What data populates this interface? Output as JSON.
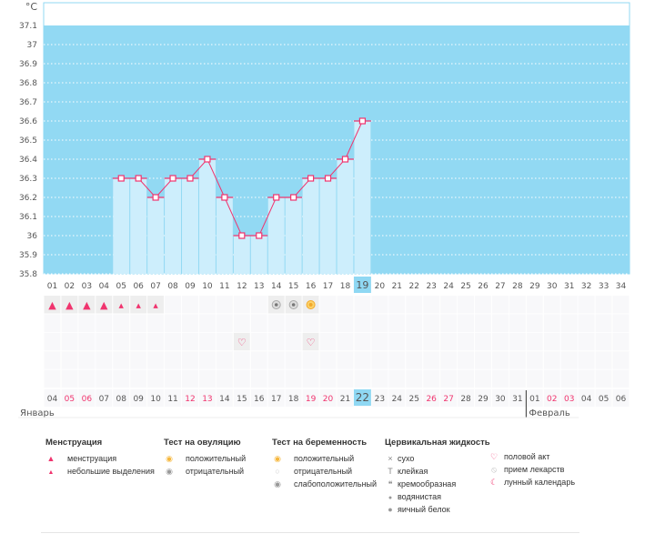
{
  "chart_data": {
    "type": "bar",
    "ylabel": "°C",
    "ylim": [
      35.8,
      37.1
    ],
    "yticks": [
      "37.1",
      "37",
      "36.9",
      "36.8",
      "36.7",
      "36.6",
      "36.5",
      "36.4",
      "36.3",
      "36.2",
      "36.1",
      "36",
      "35.9",
      "35.8"
    ],
    "cycle_days": [
      "01",
      "02",
      "03",
      "04",
      "05",
      "06",
      "07",
      "08",
      "09",
      "10",
      "11",
      "12",
      "13",
      "14",
      "15",
      "16",
      "17",
      "18",
      "19",
      "20",
      "21",
      "22",
      "23",
      "24",
      "25",
      "26",
      "27",
      "28",
      "29",
      "30",
      "31",
      "32",
      "33",
      "34"
    ],
    "temperatures": [
      null,
      null,
      null,
      null,
      36.3,
      36.3,
      36.2,
      36.3,
      36.3,
      36.4,
      36.2,
      36.0,
      36.0,
      36.2,
      36.2,
      36.3,
      36.3,
      36.4,
      36.6
    ],
    "current_day": "19",
    "dates": [
      "04",
      "05",
      "06",
      "07",
      "08",
      "09",
      "10",
      "11",
      "12",
      "13",
      "14",
      "15",
      "16",
      "17",
      "18",
      "19",
      "20",
      "21",
      "22",
      "23",
      "24",
      "25",
      "26",
      "27",
      "28",
      "29",
      "30",
      "31",
      "01",
      "02",
      "03",
      "04",
      "05",
      "06"
    ],
    "weekend_dates_idx": [
      1,
      2,
      8,
      9,
      15,
      16,
      22,
      23,
      29,
      30
    ],
    "today_date": "22",
    "months": [
      "Январь",
      "Февраль"
    ],
    "colors": {
      "bg": "#92d9f3",
      "bar": "#cdeefc",
      "line": "#f0346e",
      "today": "#8fd8f3",
      "weekend": "#f0346e"
    }
  },
  "markers": {
    "row1": [
      "menstruation",
      "menstruation",
      "menstruation",
      "menstruation",
      "spotting",
      "spotting",
      "spotting",
      null,
      null,
      null,
      null,
      null,
      null,
      "ovulation-negative",
      "ovulation-negative",
      "ovulation-positive"
    ],
    "row3": [
      null,
      null,
      null,
      null,
      null,
      null,
      null,
      null,
      null,
      null,
      null,
      "heart",
      null,
      null,
      null,
      "heart"
    ]
  },
  "legend": {
    "menstruation": {
      "title": "Менструация",
      "items": [
        "менструация",
        "небольшие выделения"
      ]
    },
    "ovulation": {
      "title": "Тест на овуляцию",
      "items": [
        "положительный",
        "отрицательный"
      ]
    },
    "pregnancy": {
      "title": "Тест на беременность",
      "items": [
        "положительный",
        "отрицательный",
        "слабоположительный"
      ]
    },
    "cervical": {
      "title": "Цервикальная жидкость",
      "items": [
        "сухо",
        "клейкая",
        "кремообразная",
        "водянистая",
        "яичный белок"
      ]
    },
    "other": {
      "items": [
        "половой акт",
        "прием лекарств",
        "лунный календарь"
      ]
    }
  }
}
